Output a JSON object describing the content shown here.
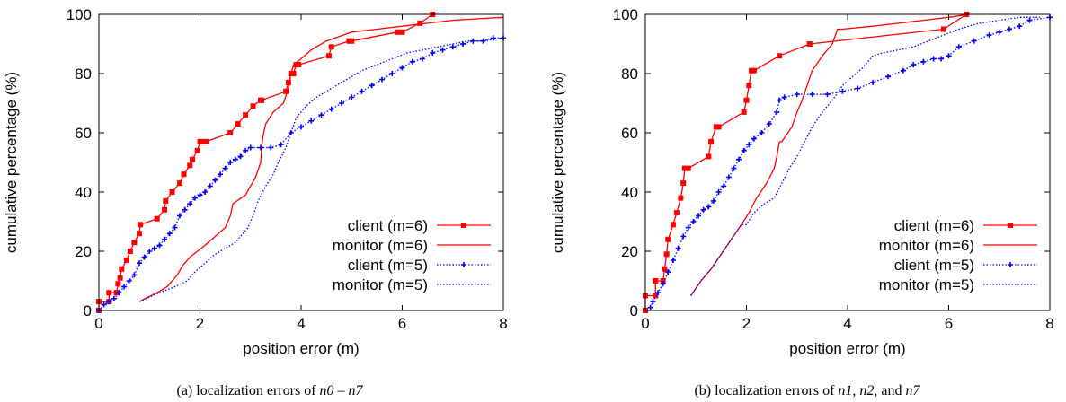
{
  "chart_data": [
    {
      "type": "line",
      "caption": {
        "prefix": "(a) localization errors of ",
        "parts": [
          {
            "text": "n0",
            "italic": true
          },
          {
            "text": " – ",
            "italic": false
          },
          {
            "text": "n7",
            "italic": true
          }
        ]
      },
      "xlabel": "position error (m)",
      "ylabel": "cumulative percentage (%)",
      "xlim": [
        0,
        8
      ],
      "ylim": [
        0,
        100
      ],
      "xticks": [
        "0",
        "2",
        "4",
        "6",
        "8"
      ],
      "yticks": [
        "0",
        "20",
        "40",
        "60",
        "80",
        "100"
      ],
      "grid": false,
      "legend_position": "bottom-right",
      "series": [
        {
          "name": "client (m=6)",
          "color": "#ff0000",
          "dash": "solid",
          "marker": "square",
          "x": [
            0.0,
            0.0,
            0.2,
            0.2,
            0.35,
            0.38,
            0.42,
            0.45,
            0.55,
            0.62,
            0.7,
            0.8,
            0.82,
            1.15,
            1.3,
            1.32,
            1.45,
            1.6,
            1.68,
            1.8,
            1.85,
            1.95,
            2.0,
            2.1,
            2.12,
            2.6,
            2.75,
            2.9,
            3.05,
            3.2,
            3.22,
            3.7,
            3.75,
            3.8,
            3.85,
            3.9,
            3.95,
            4.55,
            4.6,
            4.95,
            5.0,
            5.9,
            6.0,
            6.35,
            6.6
          ],
          "y": [
            0,
            3,
            3,
            6,
            6,
            9,
            11,
            14,
            17,
            20,
            23,
            26,
            29,
            31,
            34,
            37,
            40,
            43,
            46,
            49,
            51,
            54,
            57,
            57,
            57,
            60,
            63,
            66,
            69,
            71,
            71,
            74,
            77,
            80,
            80,
            83,
            83,
            86,
            89,
            91,
            91,
            94,
            94,
            97,
            100
          ]
        },
        {
          "name": "monitor (m=6)",
          "color": "#ff0000",
          "dash": "solid",
          "marker": "none",
          "x": [
            0.8,
            1.15,
            1.35,
            1.45,
            1.55,
            1.65,
            1.8,
            1.95,
            2.1,
            2.3,
            2.5,
            2.6,
            2.65,
            2.9,
            3.0,
            3.1,
            3.2,
            3.22,
            3.24,
            3.26,
            3.3,
            3.45,
            3.65,
            3.75,
            3.8,
            3.85,
            4.0,
            4.2,
            4.5,
            5.0,
            5.5,
            6.0,
            6.5,
            7.0,
            7.5,
            8.0
          ],
          "y": [
            3,
            6,
            8,
            10,
            12,
            15,
            18,
            20,
            22,
            25,
            28,
            32,
            36,
            39,
            42,
            45,
            50,
            55,
            58,
            60,
            63,
            67,
            70,
            75,
            80,
            83,
            85,
            88,
            91,
            94,
            95,
            96,
            97,
            98,
            98.5,
            99
          ]
        },
        {
          "name": "client (m=5)",
          "color": "#0000ff",
          "dash": "dotted",
          "marker": "plus",
          "x": [
            0.0,
            0.1,
            0.2,
            0.3,
            0.4,
            0.5,
            0.6,
            0.7,
            0.8,
            0.9,
            1.0,
            1.1,
            1.2,
            1.3,
            1.4,
            1.5,
            1.6,
            1.7,
            1.8,
            1.9,
            2.0,
            2.1,
            2.2,
            2.3,
            2.4,
            2.5,
            2.6,
            2.7,
            2.8,
            2.9,
            3.0,
            3.2,
            3.4,
            3.6,
            3.8,
            4.0,
            4.2,
            4.4,
            4.6,
            4.8,
            5.0,
            5.2,
            5.4,
            5.6,
            5.8,
            6.0,
            6.2,
            6.4,
            6.6,
            6.8,
            7.0,
            7.2,
            7.4,
            7.6,
            7.8,
            8.0
          ],
          "y": [
            0,
            2,
            3,
            4,
            6,
            8,
            10,
            12,
            16,
            18,
            20,
            21,
            22,
            24,
            26,
            28,
            32,
            34,
            36,
            38,
            39,
            40,
            42,
            44,
            46,
            48,
            50,
            51,
            52,
            54,
            55,
            55,
            55,
            56,
            60,
            62,
            64,
            66,
            68,
            70,
            72,
            74,
            76,
            78,
            80,
            82,
            84,
            85,
            87,
            88,
            89,
            90,
            91,
            91,
            92,
            92
          ]
        },
        {
          "name": "monitor (m=5)",
          "color": "#0000ff",
          "dash": "dotted",
          "marker": "none",
          "x": [
            0.8,
            1.2,
            1.5,
            1.75,
            1.9,
            2.1,
            2.3,
            2.5,
            2.7,
            2.8,
            2.95,
            3.05,
            3.15,
            3.3,
            3.45,
            3.55,
            3.7,
            3.8,
            3.9,
            4.1,
            4.3,
            4.6,
            4.9,
            5.2,
            5.5,
            5.8,
            6.1,
            6.4,
            6.7,
            7.0,
            7.3,
            7.6,
            8.0
          ],
          "y": [
            3,
            6,
            8,
            10,
            13,
            16,
            19,
            21,
            23,
            25,
            28,
            32,
            37,
            42,
            46,
            50,
            55,
            60,
            65,
            69,
            72,
            75,
            78,
            81,
            83,
            85,
            87,
            88,
            89,
            90,
            91,
            91,
            92
          ]
        }
      ]
    },
    {
      "type": "line",
      "caption": {
        "prefix": "(b) localization errors of ",
        "parts": [
          {
            "text": "n1",
            "italic": true
          },
          {
            "text": ", ",
            "italic": false
          },
          {
            "text": "n2",
            "italic": true
          },
          {
            "text": ", and ",
            "italic": false
          },
          {
            "text": "n7",
            "italic": true
          }
        ]
      },
      "xlabel": "position error (m)",
      "ylabel": "cumulative percentage (%)",
      "xlim": [
        0,
        8
      ],
      "ylim": [
        0,
        100
      ],
      "xticks": [
        "0",
        "2",
        "4",
        "6",
        "8"
      ],
      "yticks": [
        "0",
        "20",
        "40",
        "60",
        "80",
        "100"
      ],
      "grid": false,
      "legend_position": "bottom-right",
      "series": [
        {
          "name": "client (m=6)",
          "color": "#ff0000",
          "dash": "solid",
          "marker": "square",
          "x": [
            0.0,
            0.0,
            0.2,
            0.2,
            0.35,
            0.38,
            0.42,
            0.45,
            0.55,
            0.62,
            0.7,
            0.75,
            0.78,
            0.85,
            1.25,
            1.3,
            1.4,
            1.45,
            1.95,
            2.0,
            2.05,
            2.1,
            2.15,
            2.65,
            3.25,
            5.9,
            6.35
          ],
          "y": [
            0,
            5,
            5,
            10,
            10,
            14,
            19,
            24,
            29,
            33,
            38,
            43,
            48,
            48,
            52,
            57,
            62,
            62,
            67,
            71,
            76,
            81,
            81,
            86,
            90,
            95,
            100
          ]
        },
        {
          "name": "monitor (m=6)",
          "color": "#ff0000",
          "dash": "solid",
          "marker": "none",
          "x": [
            0.9,
            1.1,
            1.3,
            1.5,
            1.7,
            1.9,
            2.05,
            2.2,
            2.4,
            2.55,
            2.6,
            2.65,
            2.7,
            2.9,
            3.0,
            3.1,
            3.2,
            3.3,
            3.5,
            3.7,
            3.8,
            3.85,
            3.9,
            4.5,
            5.0,
            5.5,
            6.0,
            6.4
          ],
          "y": [
            5,
            10,
            14,
            19,
            24,
            29,
            33,
            38,
            43,
            48,
            52,
            57,
            57,
            62,
            67,
            71,
            76,
            81,
            86,
            90,
            95,
            95,
            95,
            96,
            97,
            98,
            99,
            100
          ]
        },
        {
          "name": "client (m=5)",
          "color": "#0000ff",
          "dash": "dotted",
          "marker": "plus",
          "x": [
            0.1,
            0.15,
            0.25,
            0.35,
            0.45,
            0.55,
            0.65,
            0.75,
            0.85,
            0.95,
            1.05,
            1.15,
            1.25,
            1.35,
            1.45,
            1.55,
            1.65,
            1.75,
            1.85,
            1.95,
            2.05,
            2.15,
            2.3,
            2.45,
            2.6,
            2.65,
            2.75,
            3.0,
            3.3,
            3.6,
            3.9,
            4.2,
            4.5,
            4.8,
            5.1,
            5.3,
            5.5,
            5.7,
            5.85,
            6.0,
            6.2,
            6.5,
            6.8,
            7.0,
            7.2,
            7.4,
            7.6,
            8.0
          ],
          "y": [
            1,
            3,
            6,
            9,
            13,
            17,
            21,
            25,
            28,
            30,
            32,
            34,
            35,
            37,
            40,
            42,
            45,
            48,
            51,
            54,
            56,
            58,
            60,
            63,
            67,
            71,
            72,
            73,
            73,
            73,
            74,
            75,
            77,
            79,
            81,
            83,
            84,
            85,
            85,
            86,
            89,
            91,
            93,
            94,
            95,
            96,
            98,
            99
          ]
        },
        {
          "name": "monitor (m=5)",
          "color": "#0000ff",
          "dash": "dotted",
          "marker": "none",
          "x": [
            0.9,
            1.1,
            1.3,
            1.5,
            1.7,
            1.9,
            2.0,
            2.15,
            2.35,
            2.55,
            2.7,
            2.85,
            3.0,
            3.15,
            3.3,
            3.5,
            3.7,
            3.9,
            4.1,
            4.3,
            4.5,
            4.7,
            5.0,
            5.3,
            5.6,
            5.9,
            6.2,
            6.6,
            7.0,
            7.4,
            7.8
          ],
          "y": [
            5,
            10,
            14,
            19,
            24,
            29,
            29,
            33,
            36,
            38,
            43,
            48,
            52,
            57,
            62,
            67,
            71,
            76,
            79,
            82,
            86,
            87,
            88,
            89,
            91,
            93,
            95,
            97,
            98,
            99,
            99
          ]
        }
      ]
    }
  ]
}
